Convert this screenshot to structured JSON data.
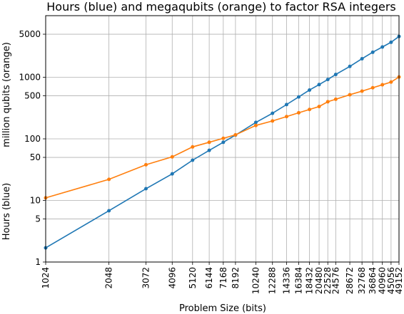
{
  "chart_data": {
    "type": "line",
    "title": "Hours (blue) and megaqubits (orange) to factor RSA integers",
    "xlabel": "Problem Size (bits)",
    "ylabel_top": "million qubits (orange)",
    "ylabel_bottom": "Hours (blue)",
    "xscale": "log",
    "yscale": "log",
    "xlim": [
      1024,
      49152
    ],
    "ylim": [
      1,
      10000
    ],
    "grid": true,
    "x_ticks": [
      "1024",
      "2048",
      "3072",
      "4096",
      "5120",
      "6144",
      "7168",
      "8192",
      "10240",
      "12288",
      "14336",
      "16384",
      "18432",
      "20480",
      "22528",
      "24576",
      "28672",
      "32768",
      "36864",
      "40960",
      "45056",
      "49152"
    ],
    "y_ticks": [
      "1",
      "5",
      "10",
      "50",
      "100",
      "500",
      "1000",
      "5000"
    ],
    "series": [
      {
        "color": "#1f77b4",
        "x": [
          1024,
          2048,
          3072,
          4096,
          5120,
          6144,
          7168,
          8192,
          10240,
          12288,
          14336,
          16384,
          18432,
          20480,
          22528,
          24576,
          28672,
          32768,
          36864,
          40960,
          45056,
          49152
        ],
        "y": [
          1.7,
          6.8,
          15.5,
          27,
          45,
          65,
          88,
          115,
          185,
          260,
          360,
          480,
          620,
          760,
          920,
          1110,
          1500,
          2000,
          2550,
          3100,
          3700,
          4600
        ]
      },
      {
        "color": "#ff7f0e",
        "x": [
          1024,
          2048,
          3072,
          4096,
          5120,
          6144,
          7168,
          8192,
          10240,
          12288,
          14336,
          16384,
          18432,
          20480,
          22528,
          24576,
          28672,
          32768,
          36864,
          40960,
          45056,
          49152
        ],
        "y": [
          11,
          22,
          38,
          51,
          74,
          88,
          102,
          116,
          165,
          195,
          230,
          265,
          300,
          335,
          400,
          440,
          520,
          595,
          675,
          755,
          835,
          1010
        ]
      }
    ]
  }
}
